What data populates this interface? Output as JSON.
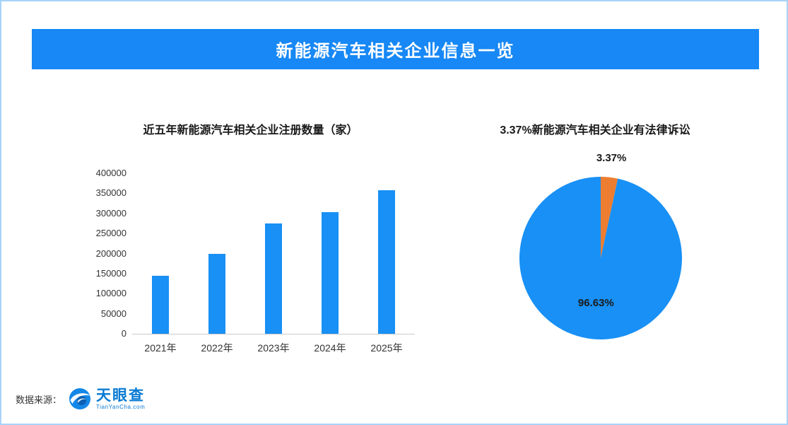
{
  "page": {
    "banner_title": "新能源汽车相关企业信息一览",
    "footer": {
      "source_label": "数据来源：",
      "logo_text": "天眼查",
      "logo_subtext": "TianYanCha.com"
    }
  },
  "colors": {
    "banner_bg": "#1788f5",
    "bar": "#1890f5",
    "pie_main": "#1890f5",
    "pie_secondary": "#ed7d31",
    "page_border": "#a8d3f8",
    "logo_blue": "#0a7bd4"
  },
  "chart_data": [
    {
      "type": "bar",
      "title": "近五年新能源汽车相关企业注册数量（家）",
      "categories": [
        "2021年",
        "2022年",
        "2023年",
        "2024年",
        "2025年"
      ],
      "values": [
        145000,
        200000,
        275000,
        303000,
        358000
      ],
      "xlabel": "",
      "ylabel": "",
      "ylim": [
        0,
        400000
      ],
      "ytick_step": 50000,
      "grid": false,
      "bar_color": "#1890f5",
      "legend": false
    },
    {
      "type": "pie",
      "title": "3.37%新能源汽车相关企业有法律诉讼",
      "slices": [
        {
          "label": "3.37%",
          "value": 3.37,
          "color": "#ed7d31"
        },
        {
          "label": "96.63%",
          "value": 96.63,
          "color": "#1890f5"
        }
      ],
      "start_angle_deg": 0,
      "direction": "clockwise",
      "legend": false
    }
  ]
}
